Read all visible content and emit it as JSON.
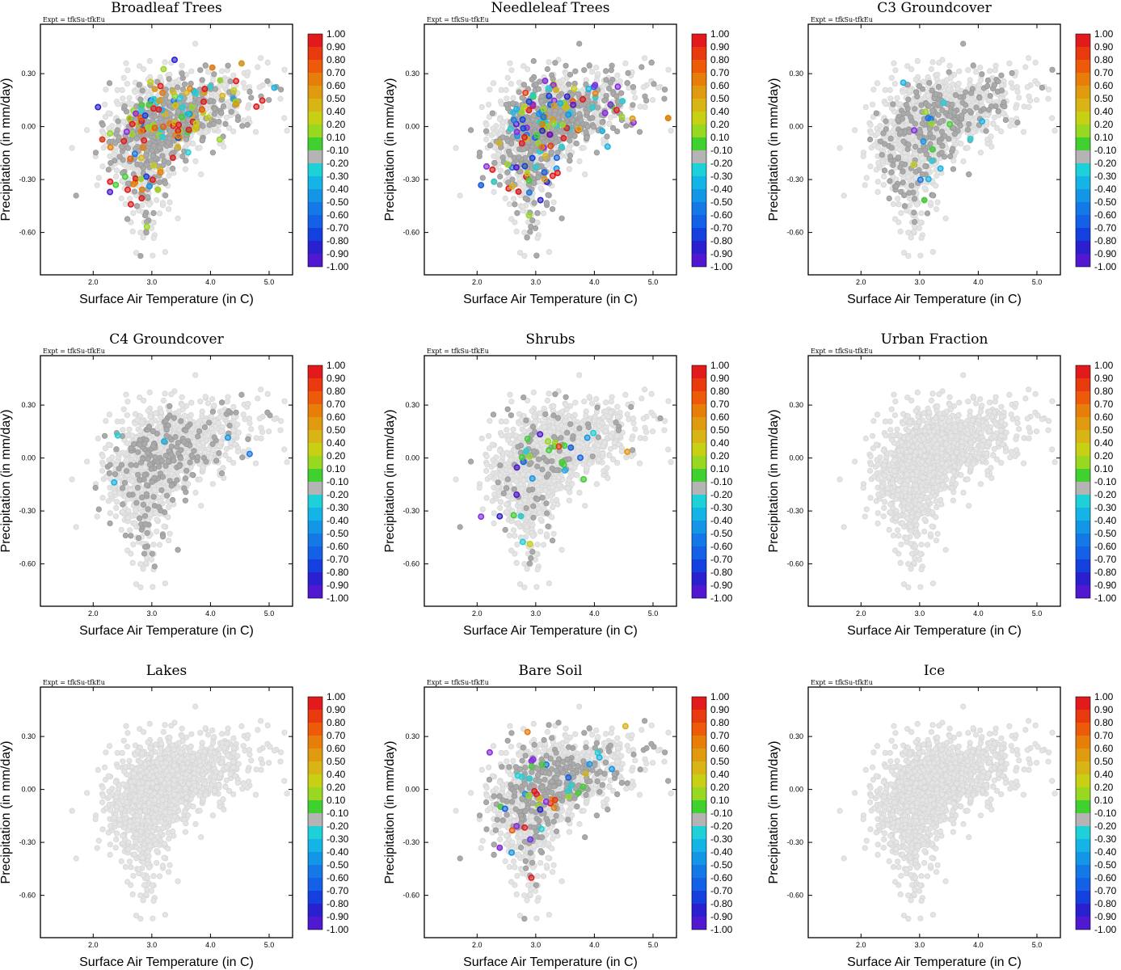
{
  "chart_data": {
    "type": "scatter",
    "panels": [
      {
        "title": "Broadleaf Trees",
        "subtitle": "Expt = tfkSu-tfkEu",
        "xlabel": "Surface Air Temperature (in C)",
        "ylabel": "Precipitation (in mm/day)",
        "xlim": [
          1.1,
          5.4
        ],
        "ylim": [
          -0.84,
          0.58
        ],
        "xticks": [
          "2.0",
          "3.0",
          "4.0",
          "5.0"
        ],
        "yticks": [
          "0.30",
          "0.00",
          "-0.30",
          "-0.60"
        ],
        "dark_fraction": 0.35,
        "colored_points": 130,
        "value_mean": 0.45,
        "value_spread": 0.55
      },
      {
        "title": "Needleleaf Trees",
        "subtitle": "Expt = tfkSu-tfkEu",
        "xlabel": "Surface Air Temperature (in C)",
        "ylabel": "Precipitation (in mm/day)",
        "xlim": [
          1.1,
          5.4
        ],
        "ylim": [
          -0.84,
          0.58
        ],
        "xticks": [
          "2.0",
          "3.0",
          "4.0",
          "5.0"
        ],
        "yticks": [
          "0.30",
          "0.00",
          "-0.30",
          "-0.60"
        ],
        "dark_fraction": 0.45,
        "colored_points": 130,
        "value_mean": 0.0,
        "value_spread": 0.75
      },
      {
        "title": "C3 Groundcover",
        "subtitle": "Expt = tfkSu-tfkEu",
        "xlabel": "Surface Air Temperature (in C)",
        "ylabel": "Precipitation (in mm/day)",
        "xlim": [
          1.1,
          5.4
        ],
        "ylim": [
          -0.84,
          0.58
        ],
        "xticks": [
          "2.0",
          "3.0",
          "4.0",
          "5.0"
        ],
        "yticks": [
          "0.30",
          "0.00",
          "-0.30",
          "-0.60"
        ],
        "dark_fraction": 0.18,
        "colored_points": 18,
        "value_mean": -0.2,
        "value_spread": 0.3
      },
      {
        "title": "C4 Groundcover",
        "subtitle": "Expt = tfkSu-tfkEu",
        "xlabel": "Surface Air Temperature (in C)",
        "ylabel": "Precipitation (in mm/day)",
        "xlim": [
          1.1,
          5.4
        ],
        "ylim": [
          -0.84,
          0.58
        ],
        "xticks": [
          "2.0",
          "3.0",
          "4.0",
          "5.0"
        ],
        "yticks": [
          "0.30",
          "0.00",
          "-0.30",
          "-0.60"
        ],
        "dark_fraction": 0.15,
        "colored_points": 5,
        "value_mean": -0.25,
        "value_spread": 0.1
      },
      {
        "title": "Shrubs",
        "subtitle": "Expt = tfkSu-tfkEu",
        "xlabel": "Surface Air Temperature (in C)",
        "ylabel": "Precipitation (in mm/day)",
        "xlim": [
          1.1,
          5.4
        ],
        "ylim": [
          -0.84,
          0.58
        ],
        "xticks": [
          "2.0",
          "3.0",
          "4.0",
          "5.0"
        ],
        "yticks": [
          "0.30",
          "0.00",
          "-0.30",
          "-0.60"
        ],
        "dark_fraction": 0.07,
        "colored_points": 30,
        "value_mean": -0.15,
        "value_spread": 0.45
      },
      {
        "title": "Urban Fraction",
        "subtitle": "Expt = tfkSu-tfkEu",
        "xlabel": "Surface Air Temperature (in C)",
        "ylabel": "Precipitation (in mm/day)",
        "xlim": [
          1.1,
          5.4
        ],
        "ylim": [
          -0.84,
          0.58
        ],
        "xticks": [
          "2.0",
          "3.0",
          "4.0",
          "5.0"
        ],
        "yticks": [
          "0.30",
          "0.00",
          "-0.30",
          "-0.60"
        ],
        "dark_fraction": 0.0,
        "colored_points": 0,
        "value_mean": 0.0,
        "value_spread": 0.0
      },
      {
        "title": "Lakes",
        "subtitle": "Expt = tfkSu-tfkEu",
        "xlabel": "Surface Air Temperature (in C)",
        "ylabel": "Precipitation (in mm/day)",
        "xlim": [
          1.1,
          5.4
        ],
        "ylim": [
          -0.84,
          0.58
        ],
        "xticks": [
          "2.0",
          "3.0",
          "4.0",
          "5.0"
        ],
        "yticks": [
          "0.30",
          "0.00",
          "-0.30",
          "-0.60"
        ],
        "dark_fraction": 0.0,
        "colored_points": 0,
        "value_mean": 0.0,
        "value_spread": 0.0
      },
      {
        "title": "Bare Soil",
        "subtitle": "Expt = tfkSu-tfkEu",
        "xlabel": "Surface Air Temperature (in C)",
        "ylabel": "Precipitation (in mm/day)",
        "xlim": [
          1.1,
          5.4
        ],
        "ylim": [
          -0.84,
          0.58
        ],
        "xticks": [
          "2.0",
          "3.0",
          "4.0",
          "5.0"
        ],
        "yticks": [
          "0.30",
          "0.00",
          "-0.30",
          "-0.60"
        ],
        "dark_fraction": 0.22,
        "colored_points": 45,
        "value_mean": -0.1,
        "value_spread": 0.8
      },
      {
        "title": "Ice",
        "subtitle": "Expt = tfkSu-tfkEu",
        "xlabel": "Surface Air Temperature (in C)",
        "ylabel": "Precipitation (in mm/day)",
        "xlim": [
          1.1,
          5.4
        ],
        "ylim": [
          -0.84,
          0.58
        ],
        "xticks": [
          "2.0",
          "3.0",
          "4.0",
          "5.0"
        ],
        "yticks": [
          "0.30",
          "0.00",
          "-0.30",
          "-0.60"
        ],
        "dark_fraction": 0.0,
        "colored_points": 0,
        "value_mean": 0.0,
        "value_spread": 0.0
      }
    ],
    "colorbar": {
      "labels": [
        "1.00",
        "0.90",
        "0.80",
        "0.70",
        "0.60",
        "0.50",
        "0.40",
        "0.20",
        "0.10",
        "-0.10",
        "-0.20",
        "-0.30",
        "-0.40",
        "-0.50",
        "-0.60",
        "-0.70",
        "-0.80",
        "-0.90",
        "-1.00"
      ],
      "colors": [
        "#e31a1c",
        "#e8390f",
        "#ec5a0a",
        "#e87e0a",
        "#e09a10",
        "#d8b414",
        "#c8d014",
        "#98d820",
        "#40d030",
        "#b4b4b4",
        "#1ed0d8",
        "#14b4e6",
        "#1496e6",
        "#1478e6",
        "#1460e6",
        "#1440e0",
        "#2a20d0",
        "#5018d0",
        "#8a2be2"
      ]
    },
    "base_point_color": "#e4e4e4",
    "dark_point_color": "#aaaaaa"
  }
}
